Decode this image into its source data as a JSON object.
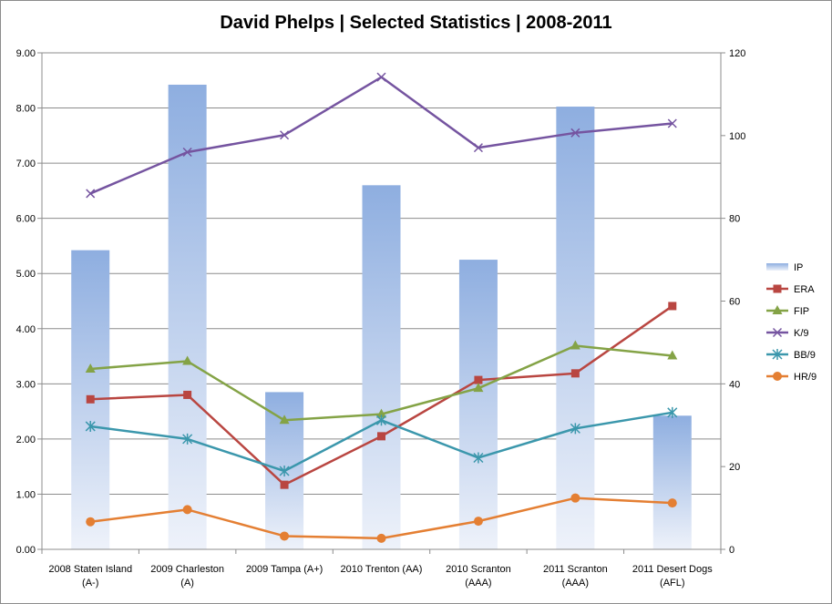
{
  "chart_data": {
    "type": "bar",
    "title": "David Phelps | Selected Statistics | 2008-2011",
    "categories": [
      [
        "2008 Staten Island",
        "(A-)"
      ],
      [
        "2009 Charleston",
        "(A)"
      ],
      [
        "2009 Tampa (A+)"
      ],
      [
        "2010 Trenton (AA)"
      ],
      [
        "2010 Scranton",
        "(AAA)"
      ],
      [
        "2011 Scranton",
        "(AAA)"
      ],
      [
        "2011 Desert Dogs",
        "(AFL)"
      ]
    ],
    "y_left": {
      "min": 0,
      "max": 9,
      "step": 1,
      "ticks": [
        "0.00",
        "1.00",
        "2.00",
        "3.00",
        "4.00",
        "5.00",
        "6.00",
        "7.00",
        "8.00",
        "9.00"
      ]
    },
    "y_right": {
      "min": 0,
      "max": 120,
      "step": 20,
      "ticks": [
        "0",
        "20",
        "40",
        "60",
        "80",
        "100",
        "120"
      ]
    },
    "grid": true,
    "legend_position": "right",
    "series": [
      {
        "name": "IP",
        "type": "bar",
        "axis": "right",
        "color": "#8eaee0",
        "values": [
          72.3,
          112.3,
          38,
          88,
          70,
          107,
          32.3
        ]
      },
      {
        "name": "ERA",
        "type": "line",
        "axis": "left",
        "color": "#b94641",
        "marker": "square",
        "values": [
          2.72,
          2.8,
          1.17,
          2.05,
          3.07,
          3.19,
          4.41
        ]
      },
      {
        "name": "FIP",
        "type": "line",
        "axis": "left",
        "color": "#84a346",
        "marker": "triangle",
        "values": [
          3.27,
          3.41,
          2.34,
          2.45,
          2.92,
          3.69,
          3.51
        ]
      },
      {
        "name": "K/9",
        "type": "line",
        "axis": "left",
        "color": "#7554a0",
        "marker": "x",
        "values": [
          6.45,
          7.2,
          7.51,
          8.56,
          7.28,
          7.55,
          7.72
        ]
      },
      {
        "name": "BB/9",
        "type": "line",
        "axis": "left",
        "color": "#3b97ac",
        "marker": "star",
        "values": [
          2.23,
          2.0,
          1.42,
          2.34,
          1.66,
          2.19,
          2.48
        ]
      },
      {
        "name": "HR/9",
        "type": "line",
        "axis": "left",
        "color": "#e47f33",
        "marker": "circle",
        "values": [
          0.5,
          0.72,
          0.24,
          0.2,
          0.51,
          0.93,
          0.84
        ]
      }
    ]
  }
}
